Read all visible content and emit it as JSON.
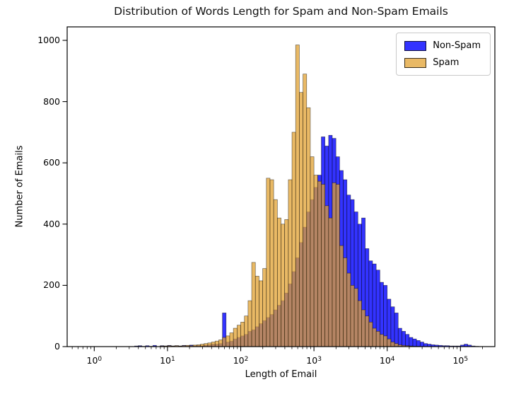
{
  "chart_data": {
    "type": "histogram",
    "title": "Distribution of Words Length for Spam and Non-Spam Emails",
    "xlabel": "Length of Email",
    "ylabel": "Number of Emails",
    "x_scale": "log10",
    "grid": false,
    "legend_position": "upper right",
    "xlim_log10": [
      -0.37,
      5.47
    ],
    "ylim": [
      0,
      1044
    ],
    "y_ticks": [
      0,
      200,
      400,
      600,
      800,
      1000
    ],
    "x_ticks": [
      {
        "base": "10",
        "exp": "0",
        "log10": 0
      },
      {
        "base": "10",
        "exp": "1",
        "log10": 1
      },
      {
        "base": "10",
        "exp": "2",
        "log10": 2
      },
      {
        "base": "10",
        "exp": "3",
        "log10": 3
      },
      {
        "base": "10",
        "exp": "4",
        "log10": 4
      },
      {
        "base": "10",
        "exp": "5",
        "log10": 5
      }
    ],
    "bins_log10": {
      "start": 0,
      "step": 0.05,
      "count": 110
    },
    "edge_color": "#000000",
    "series": [
      {
        "name": "Non-Spam",
        "color": "#0000ff",
        "alpha": 0.8,
        "counts": [
          0,
          0,
          0,
          0,
          0,
          0,
          0,
          0,
          0,
          0,
          0,
          2,
          3,
          0,
          3,
          0,
          4,
          0,
          3,
          2,
          4,
          2,
          3,
          2,
          4,
          3,
          5,
          3,
          4,
          3,
          5,
          6,
          8,
          8,
          10,
          110,
          15,
          18,
          25,
          30,
          35,
          40,
          50,
          55,
          65,
          75,
          85,
          95,
          105,
          120,
          135,
          150,
          175,
          205,
          245,
          290,
          340,
          390,
          440,
          480,
          520,
          560,
          685,
          655,
          690,
          680,
          620,
          575,
          545,
          495,
          480,
          440,
          400,
          420,
          320,
          280,
          270,
          250,
          210,
          200,
          155,
          130,
          110,
          60,
          50,
          40,
          30,
          25,
          20,
          15,
          10,
          8,
          6,
          5,
          4,
          3,
          3,
          2,
          2,
          2,
          5,
          8,
          5,
          2,
          1,
          0,
          0,
          0,
          0,
          0
        ]
      },
      {
        "name": "Spam",
        "color": "#e2a231",
        "alpha": 0.75,
        "counts": [
          0,
          0,
          0,
          0,
          0,
          0,
          0,
          0,
          0,
          0,
          0,
          0,
          1,
          1,
          0,
          1,
          1,
          0,
          2,
          2,
          3,
          2,
          3,
          2,
          3,
          4,
          3,
          5,
          6,
          8,
          10,
          12,
          15,
          18,
          22,
          30,
          35,
          45,
          60,
          70,
          80,
          100,
          150,
          275,
          230,
          215,
          255,
          550,
          545,
          480,
          420,
          400,
          415,
          545,
          700,
          985,
          830,
          890,
          780,
          620,
          560,
          540,
          530,
          460,
          420,
          535,
          530,
          330,
          290,
          240,
          200,
          190,
          150,
          120,
          100,
          80,
          60,
          50,
          40,
          35,
          25,
          15,
          10,
          6,
          4,
          3,
          2,
          1,
          1,
          0,
          0,
          0,
          0,
          0,
          0,
          0,
          0,
          0,
          0,
          0,
          0,
          0,
          0,
          0,
          0,
          0,
          0,
          0,
          0,
          0
        ]
      }
    ]
  }
}
